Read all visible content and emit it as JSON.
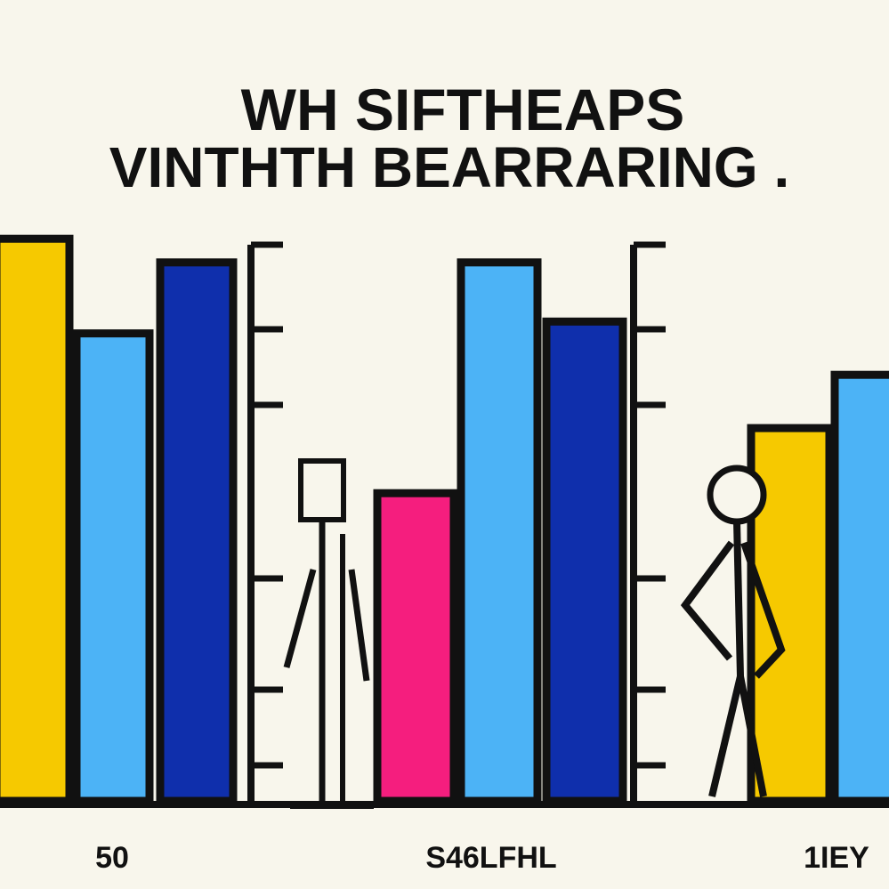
{
  "chart_data": {
    "type": "bar",
    "title_lines": [
      "WH SIFTHEAPS",
      "VINTHTH BEARRARING ."
    ],
    "categories": [
      "50",
      "S46LFHL",
      "1IEY"
    ],
    "series_colors": [
      "#f6c900",
      "#4cb3f6",
      "#0f2fac",
      "#f51e7e"
    ],
    "groups": [
      {
        "label": "50",
        "bars": [
          {
            "color": "#f6c900",
            "value": 95
          },
          {
            "color": "#4cb3f6",
            "value": 79
          },
          {
            "color": "#0f2fac",
            "value": 91
          }
        ]
      },
      {
        "label": "S46LFHL",
        "bars": [
          {
            "color": "#f51e7e",
            "value": 52
          },
          {
            "color": "#4cb3f6",
            "value": 91
          },
          {
            "color": "#0f2fac",
            "value": 81
          }
        ]
      },
      {
        "label": "1IEY",
        "bars": [
          {
            "color": "#f6c900",
            "value": 63
          },
          {
            "color": "#4cb3f6",
            "value": 72
          }
        ]
      }
    ],
    "ylim": [
      0,
      100
    ],
    "xlabel": "",
    "ylabel": "",
    "legend": "none",
    "grid": false
  }
}
